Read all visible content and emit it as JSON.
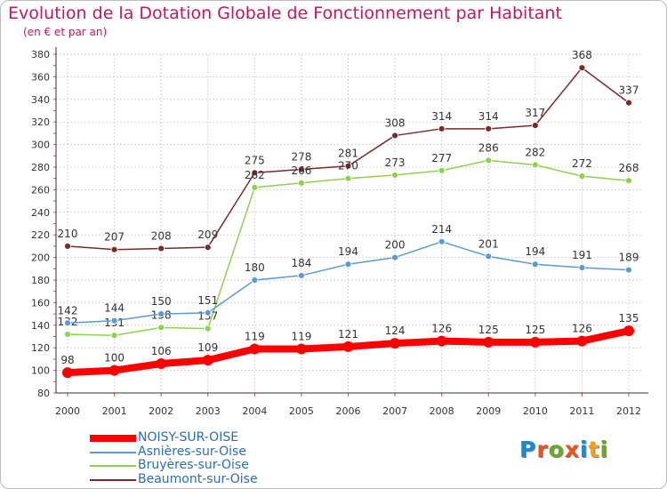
{
  "title": "Evolution de la Dotation Globale de Fonctionnement par Habitant",
  "subtitle": "(en € et par an)",
  "logo": {
    "text": "Proxiti",
    "letters": [
      "P",
      "r",
      "o",
      "x",
      "i",
      "t",
      "i"
    ],
    "colors": [
      "#1e88c8",
      "#e8541b",
      "#6aa82a",
      "#e8541b",
      "#1e88c8",
      "#f0a020",
      "#6aa82a"
    ]
  },
  "chart_data": {
    "type": "line",
    "x": [
      "2000",
      "2001",
      "2002",
      "2003",
      "2004",
      "2005",
      "2006",
      "2007",
      "2008",
      "2009",
      "2010",
      "2011",
      "2012"
    ],
    "ylim": [
      80,
      380
    ],
    "yticks": [
      80,
      100,
      120,
      140,
      160,
      180,
      200,
      220,
      240,
      260,
      280,
      300,
      320,
      340,
      360,
      380
    ],
    "grid": true,
    "legend_position": "bottom-left",
    "series": [
      {
        "name": "NOISY-SUR-OISE",
        "color": "#ff0000",
        "bold": true,
        "values": [
          98,
          100,
          106,
          109,
          119,
          119,
          121,
          124,
          126,
          125,
          125,
          126,
          135
        ]
      },
      {
        "name": "Asnières-sur-Oise",
        "color": "#5b9bd5",
        "bold": false,
        "values": [
          142,
          144,
          150,
          151,
          180,
          184,
          194,
          200,
          214,
          201,
          194,
          191,
          189
        ]
      },
      {
        "name": "Bruyères-sur-Oise",
        "color": "#8fd14f",
        "bold": false,
        "values": [
          132,
          131,
          138,
          137,
          262,
          266,
          270,
          273,
          277,
          286,
          282,
          272,
          268
        ]
      },
      {
        "name": "Beaumont-sur-Oise",
        "color": "#7b2a2a",
        "bold": false,
        "values": [
          210,
          207,
          208,
          209,
          275,
          278,
          281,
          308,
          314,
          314,
          317,
          368,
          337
        ]
      }
    ]
  }
}
